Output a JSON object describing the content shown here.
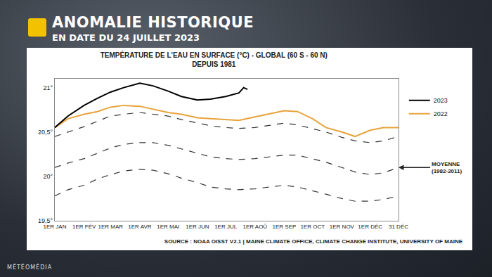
{
  "header": {
    "title": "ANOMALIE HISTORIQUE",
    "subtitle": "EN DATE DU 24 JUILLET 2023"
  },
  "source": "SOURCE : NOAA OISST V2.1 | MAINE CLIMATE OFFICE, CLIMATE CHANGE INSTITUTE, UNIVERSITY OF MAINE",
  "credit": "MÉTÉOMÉDIA",
  "chart_data": {
    "type": "line",
    "title": "TEMPÉRATURE DE L'EAU EN SURFACE (°C) - GLOBAL (60 S - 60 N)",
    "subtitle": "DEPUIS 1981",
    "x": [
      1,
      15,
      32,
      46,
      60,
      74,
      91,
      105,
      121,
      135,
      152,
      166,
      182,
      196,
      213,
      227,
      244,
      258,
      274,
      288,
      305,
      319,
      335,
      349,
      365
    ],
    "series": [
      {
        "color": "#333333",
        "line_style": "dashed",
        "values": [
          20.45,
          20.5,
          20.56,
          20.62,
          20.68,
          20.7,
          20.72,
          20.7,
          20.68,
          20.64,
          20.6,
          20.57,
          20.55,
          20.54,
          20.55,
          20.57,
          20.6,
          20.58,
          20.54,
          20.5,
          20.44,
          20.4,
          20.38,
          20.4,
          20.45
        ]
      },
      {
        "name": "MOYENNE (1982-2011)",
        "color": "#333333",
        "line_style": "dashed",
        "values": [
          20.1,
          20.15,
          20.2,
          20.26,
          20.32,
          20.36,
          20.38,
          20.38,
          20.35,
          20.31,
          20.26,
          20.22,
          20.2,
          20.19,
          20.2,
          20.22,
          20.24,
          20.24,
          20.2,
          20.16,
          20.1,
          20.05,
          20.02,
          20.04,
          20.1
        ]
      },
      {
        "color": "#333333",
        "line_style": "dashed",
        "values": [
          19.78,
          19.85,
          19.9,
          19.97,
          20.02,
          20.06,
          20.08,
          20.07,
          20.03,
          19.98,
          19.93,
          19.88,
          19.86,
          19.85,
          19.86,
          19.88,
          19.9,
          19.88,
          19.84,
          19.8,
          19.75,
          19.72,
          19.72,
          19.74,
          19.78
        ]
      },
      {
        "name": "2022",
        "color": "#e8a33c",
        "line_style": "solid",
        "values": [
          20.55,
          20.65,
          20.7,
          20.73,
          20.78,
          20.8,
          20.79,
          20.76,
          20.72,
          20.7,
          20.66,
          20.65,
          20.64,
          20.63,
          20.67,
          20.7,
          20.74,
          20.73,
          20.65,
          20.55,
          20.5,
          20.45,
          20.52,
          20.55,
          20.55
        ]
      },
      {
        "name": "2023",
        "color": "#000000",
        "line_style": "solid",
        "x": [
          1,
          15,
          32,
          46,
          60,
          74,
          91,
          105,
          121,
          135,
          152,
          166,
          182,
          196,
          201,
          205
        ],
        "values": [
          20.55,
          20.68,
          20.8,
          20.88,
          20.95,
          21.0,
          21.05,
          21.02,
          20.96,
          20.9,
          20.86,
          20.87,
          20.9,
          20.94,
          21.0,
          20.98
        ]
      }
    ],
    "xlim": [
      1,
      365
    ],
    "xticks": [
      {
        "value": 1,
        "label": "1ER JAN"
      },
      {
        "value": 32,
        "label": "1ER FÉV"
      },
      {
        "value": 60,
        "label": "1ER MAR"
      },
      {
        "value": 91,
        "label": "1ER AVR"
      },
      {
        "value": 121,
        "label": "1ER MAI"
      },
      {
        "value": 152,
        "label": "1ER JUN"
      },
      {
        "value": 182,
        "label": "1ER JUL"
      },
      {
        "value": 213,
        "label": "1ER AOÛ"
      },
      {
        "value": 244,
        "label": "1ER SEP"
      },
      {
        "value": 274,
        "label": "1ER OCT"
      },
      {
        "value": 305,
        "label": "1ER NOV"
      },
      {
        "value": 335,
        "label": "1ER DÉC"
      },
      {
        "value": 365,
        "label": "31 DÉC"
      }
    ],
    "ylim": [
      19.5,
      21.1
    ],
    "yticks": [
      {
        "value": 19.5,
        "label": "19,5°"
      },
      {
        "value": 20,
        "label": "20°"
      },
      {
        "value": 20.5,
        "label": "20,5°"
      },
      {
        "value": 21,
        "label": "21°"
      }
    ],
    "grid": false,
    "legend": "upper right"
  }
}
